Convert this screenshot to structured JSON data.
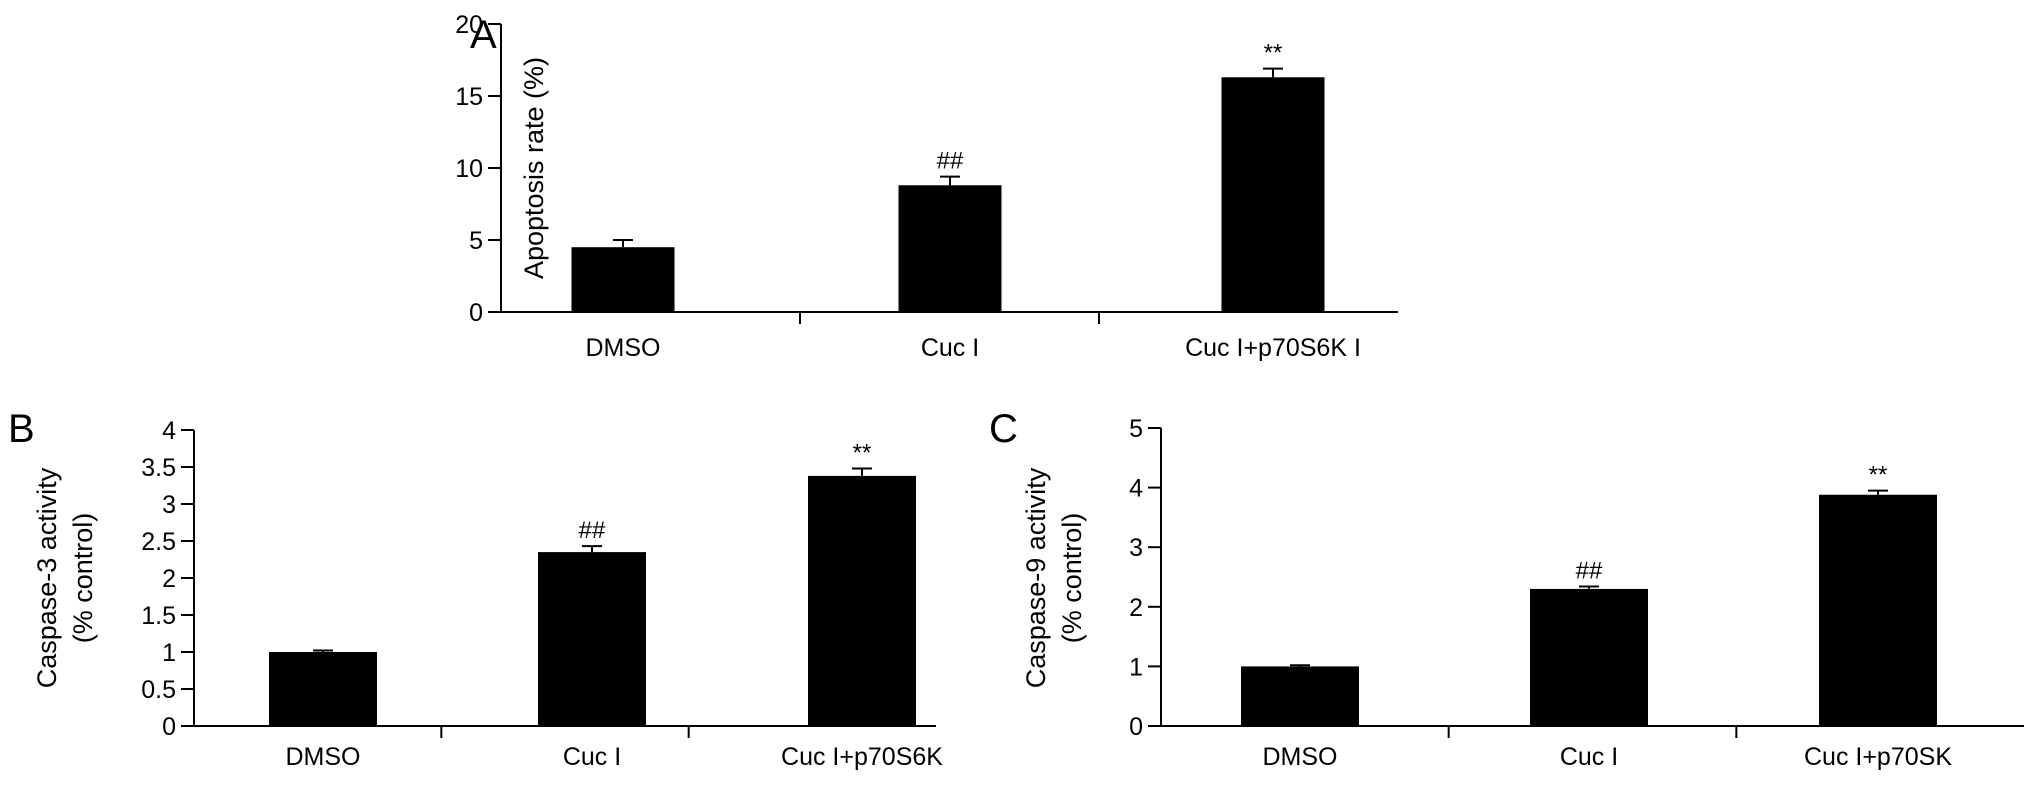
{
  "chart_data": [
    {
      "type": "bar",
      "panel": "A",
      "categories": [
        "DMSO",
        "Cuc I",
        "Cuc I+p70S6K I"
      ],
      "values": [
        4.5,
        8.8,
        16.3
      ],
      "error": [
        0.5,
        0.6,
        0.6
      ],
      "annotations": [
        "",
        "##",
        "**"
      ],
      "ylabel": [
        "Apoptosis rate (%)"
      ],
      "ylim": [
        0,
        20
      ],
      "yticks": [
        0,
        5,
        10,
        15,
        20
      ],
      "ytick_labels": [
        "0",
        "5",
        "10",
        "15",
        "20"
      ],
      "bar_color": "#000000",
      "grid": false
    },
    {
      "type": "bar",
      "panel": "B",
      "categories": [
        "DMSO",
        "Cuc I",
        "Cuc I+p70S6K"
      ],
      "values": [
        1.0,
        2.35,
        3.38
      ],
      "error": [
        0.02,
        0.08,
        0.1
      ],
      "annotations": [
        "",
        "##",
        "**"
      ],
      "ylabel": [
        "Caspase-3 activity",
        "(% control)"
      ],
      "ylim": [
        0,
        4
      ],
      "yticks": [
        0,
        0.5,
        1,
        1.5,
        2,
        2.5,
        3,
        3.5,
        4
      ],
      "ytick_labels": [
        "0",
        "0.5",
        "1",
        "1.5",
        "2",
        "2.5",
        "3",
        "3.5",
        "4"
      ],
      "bar_color": "#000000",
      "grid": false
    },
    {
      "type": "bar",
      "panel": "C",
      "categories": [
        "DMSO",
        "Cuc I",
        "Cuc I+p70SK"
      ],
      "values": [
        1.0,
        2.3,
        3.88
      ],
      "error": [
        0.02,
        0.04,
        0.07
      ],
      "annotations": [
        "",
        "##",
        "**"
      ],
      "ylabel": [
        "Caspase-9 activity",
        "(% control)"
      ],
      "ylim": [
        0,
        5
      ],
      "yticks": [
        0,
        1,
        2,
        3,
        4,
        5
      ],
      "ytick_labels": [
        "0",
        "1",
        "2",
        "3",
        "4",
        "5"
      ],
      "bar_color": "#000000",
      "grid": false
    }
  ]
}
